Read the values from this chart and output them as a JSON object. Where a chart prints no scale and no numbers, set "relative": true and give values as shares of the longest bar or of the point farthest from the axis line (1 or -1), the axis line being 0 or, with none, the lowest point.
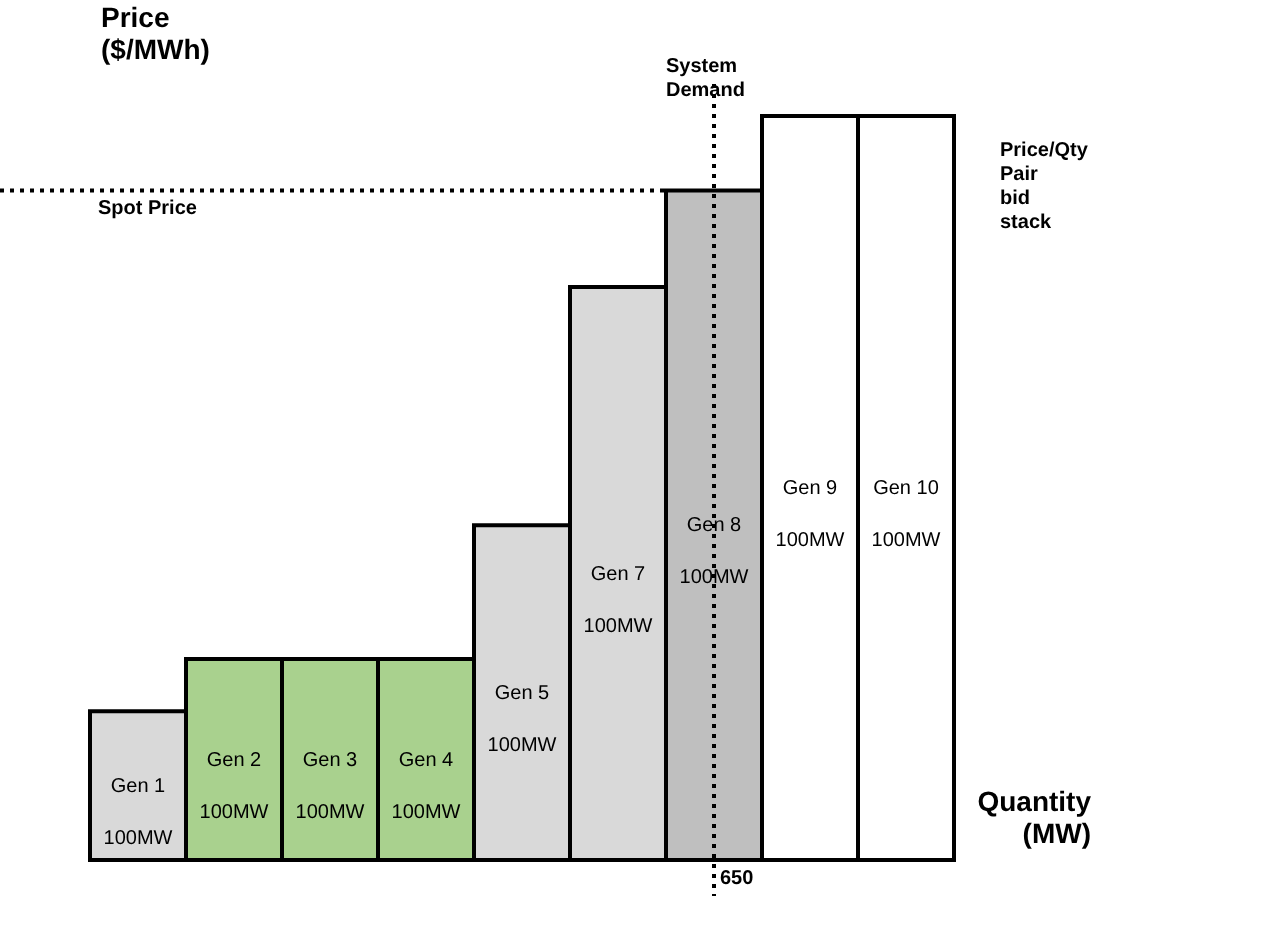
{
  "chart_data": {
    "type": "bar",
    "relative": true,
    "xlabel": "Quantity (MW)",
    "ylabel": "Price ($/MWh)",
    "categories": [
      "Gen 1\n100MW",
      "Gen 2\n100MW",
      "Gen 3\n100MW",
      "Gen 4\n100MW",
      "Gen 5\n100MW",
      "Gen 7\n100MW",
      "Gen 8\n100MW",
      "Gen 9\n100MW",
      "Gen 10\n100MW"
    ],
    "values": [
      0.2,
      0.27,
      0.27,
      0.27,
      0.45,
      0.77,
      0.9,
      1,
      1
    ],
    "colors": [
      "#d9d9d9",
      "#a9d18e",
      "#a9d18e",
      "#a9d18e",
      "#d9d9d9",
      "#d9d9d9",
      "#bfbfbf",
      "#ffffff",
      "#ffffff"
    ],
    "ref_lines": [
      {
        "axis": "y",
        "value": 0.9,
        "label": "Spot Price",
        "line_style": "dotted"
      }
    ],
    "annotations": [
      "System Demand",
      "650",
      "Price/Qty Pair bid stack"
    ],
    "legend": false,
    "grid": false
  }
}
